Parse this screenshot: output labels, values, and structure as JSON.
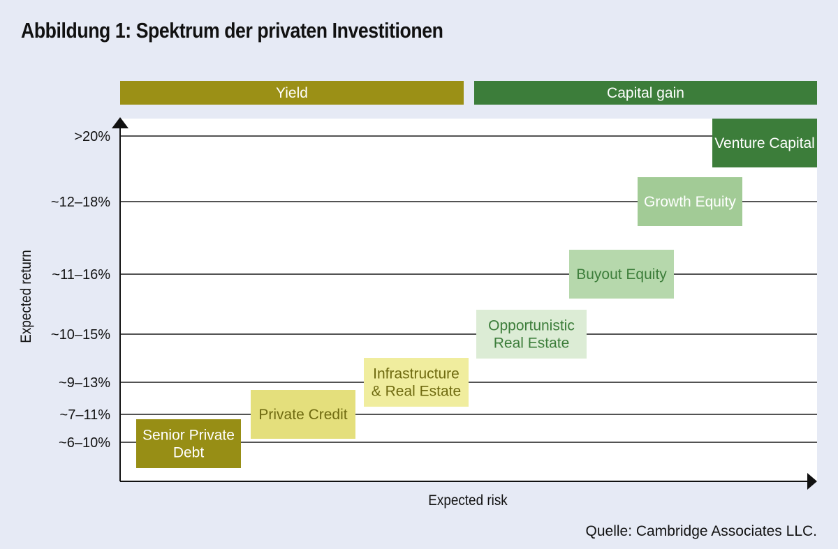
{
  "title": "Abbildung 1: Spektrum der privaten Investitionen",
  "source": "Quelle: Cambridge Associates LLC.",
  "chart_data": {
    "type": "table",
    "xlabel": "Expected risk",
    "ylabel": "Expected return",
    "bands": [
      {
        "label": "Yield",
        "color": "#9b9016"
      },
      {
        "label": "Capital gain",
        "color": "#3c7d3a"
      }
    ],
    "y_levels": [
      ">20%",
      "~12–18%",
      "~11–16%",
      "~10–15%",
      "~9–13%",
      "~7–11%",
      "~6–10%"
    ],
    "categories": [
      {
        "label": "Senior Private Debt",
        "lines": [
          "Senior Private",
          "Debt"
        ],
        "return": "~6–10%",
        "risk_rank": 1,
        "fill": "#978e15",
        "text_color": "#ffffff"
      },
      {
        "label": "Private Credit",
        "lines": [
          "Private Credit"
        ],
        "return": "~7–11%",
        "risk_rank": 2,
        "fill": "#e4df7c",
        "text_color": "#6f6a10"
      },
      {
        "label": "Infrastructure & Real Estate",
        "lines": [
          "Infrastructure",
          "& Real Estate"
        ],
        "return": "~9–13%",
        "risk_rank": 3,
        "fill": "#f0ed9e",
        "text_color": "#6f6a10"
      },
      {
        "label": "Opportunistic Real Estate",
        "lines": [
          "Opportunistic",
          "Real Estate"
        ],
        "return": "~10–15%",
        "risk_rank": 4,
        "fill": "#dcecd5",
        "text_color": "#3c7d3a"
      },
      {
        "label": "Buyout Equity",
        "lines": [
          "Buyout Equity"
        ],
        "return": "~11–16%",
        "risk_rank": 5,
        "fill": "#b6d8ac",
        "text_color": "#3c7d3a"
      },
      {
        "label": "Growth Equity",
        "lines": [
          "Growth Equity"
        ],
        "return": "~12–18%",
        "risk_rank": 6,
        "fill": "#a2cb96",
        "text_color": "#ffffff"
      },
      {
        "label": "Venture Capital",
        "lines": [
          "Venture Capital"
        ],
        "return": ">20%",
        "risk_rank": 7,
        "fill": "#3c7d3a",
        "text_color": "#ffffff"
      }
    ]
  }
}
